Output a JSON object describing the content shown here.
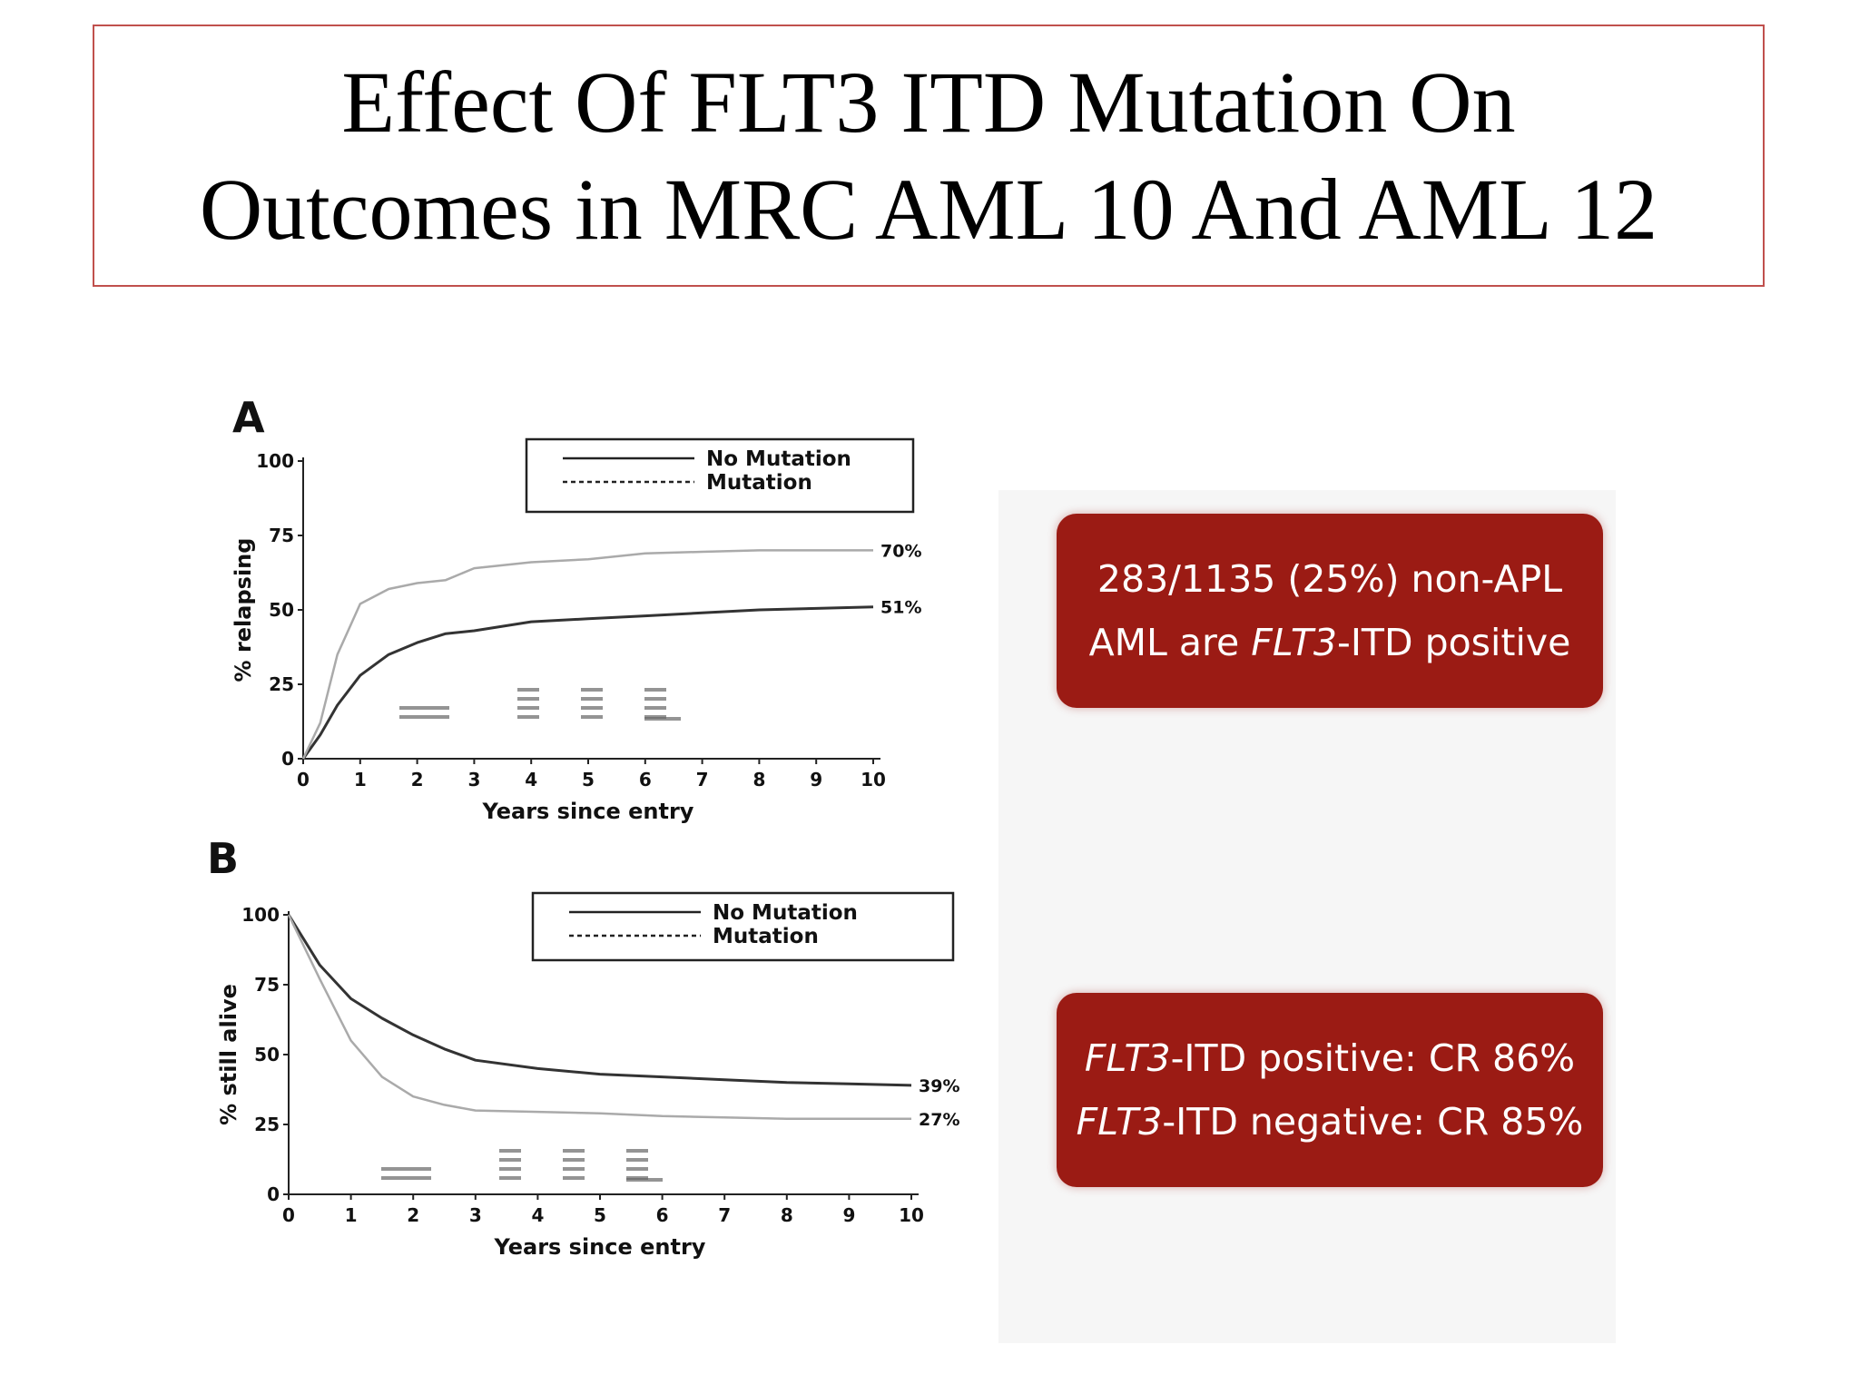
{
  "slide": {
    "title_line1": "Effect Of FLT3 ITD Mutation On",
    "title_line2": "Outcomes in MRC AML 10 And AML 12"
  },
  "callouts": [
    {
      "line1": "283/1135 (25%) non-APL",
      "line2_pre": "AML are ",
      "line2_em": "FLT3",
      "line2_post": "-ITD positive"
    },
    {
      "line1_em": "FLT3",
      "line1_post": "-ITD positive: CR 86%",
      "line2_em": "FLT3",
      "line2_post": "-ITD negative: CR 85%"
    }
  ],
  "colors": {
    "callout_bg": "#9b1b14",
    "title_border": "#c0504d",
    "no_mutation": "#333333",
    "mutation": "#aaaaaa"
  },
  "chart_data": [
    {
      "panel": "A",
      "type": "line",
      "ylabel": "% relapsing",
      "xlabel": "Years since entry",
      "xlim": [
        0,
        10
      ],
      "ylim": [
        0,
        100
      ],
      "xticks": [
        0,
        1,
        2,
        3,
        4,
        5,
        6,
        7,
        8,
        9,
        10
      ],
      "yticks": [
        0,
        25,
        50,
        75,
        100
      ],
      "legend": {
        "position": "top-right"
      },
      "series": [
        {
          "name": "No Mutation",
          "style": "solid",
          "end_label": "51%",
          "x": [
            0,
            0.3,
            0.6,
            1,
            1.5,
            2,
            2.5,
            3,
            4,
            5,
            6,
            7,
            8,
            9,
            10
          ],
          "y": [
            0,
            8,
            18,
            28,
            35,
            39,
            42,
            43,
            46,
            47,
            48,
            49,
            50,
            50.5,
            51
          ]
        },
        {
          "name": "Mutation",
          "style": "dashed",
          "end_label": "70%",
          "x": [
            0,
            0.3,
            0.6,
            1,
            1.5,
            2,
            2.5,
            3,
            4,
            5,
            6,
            7,
            8,
            9,
            10
          ],
          "y": [
            0,
            12,
            35,
            52,
            57,
            59,
            60,
            64,
            66,
            67,
            69,
            69.5,
            70,
            70,
            70
          ]
        }
      ]
    },
    {
      "panel": "B",
      "type": "line",
      "ylabel": "% still alive",
      "xlabel": "Years since entry",
      "xlim": [
        0,
        10
      ],
      "ylim": [
        0,
        100
      ],
      "xticks": [
        0,
        1,
        2,
        3,
        4,
        5,
        6,
        7,
        8,
        9,
        10
      ],
      "yticks": [
        0,
        25,
        50,
        75,
        100
      ],
      "legend": {
        "position": "top-right"
      },
      "series": [
        {
          "name": "No Mutation",
          "style": "solid",
          "end_label": "39%",
          "x": [
            0,
            0.5,
            1,
            1.5,
            2,
            2.5,
            3,
            4,
            5,
            6,
            7,
            8,
            9,
            10
          ],
          "y": [
            100,
            82,
            70,
            63,
            57,
            52,
            48,
            45,
            43,
            42,
            41,
            40,
            39.5,
            39
          ]
        },
        {
          "name": "Mutation",
          "style": "dashed",
          "end_label": "27%",
          "x": [
            0,
            0.5,
            1,
            1.5,
            2,
            2.5,
            3,
            4,
            5,
            6,
            7,
            8,
            9,
            10
          ],
          "y": [
            100,
            77,
            55,
            42,
            35,
            32,
            30,
            29.5,
            29,
            28,
            27.5,
            27,
            27,
            27
          ]
        }
      ]
    }
  ]
}
